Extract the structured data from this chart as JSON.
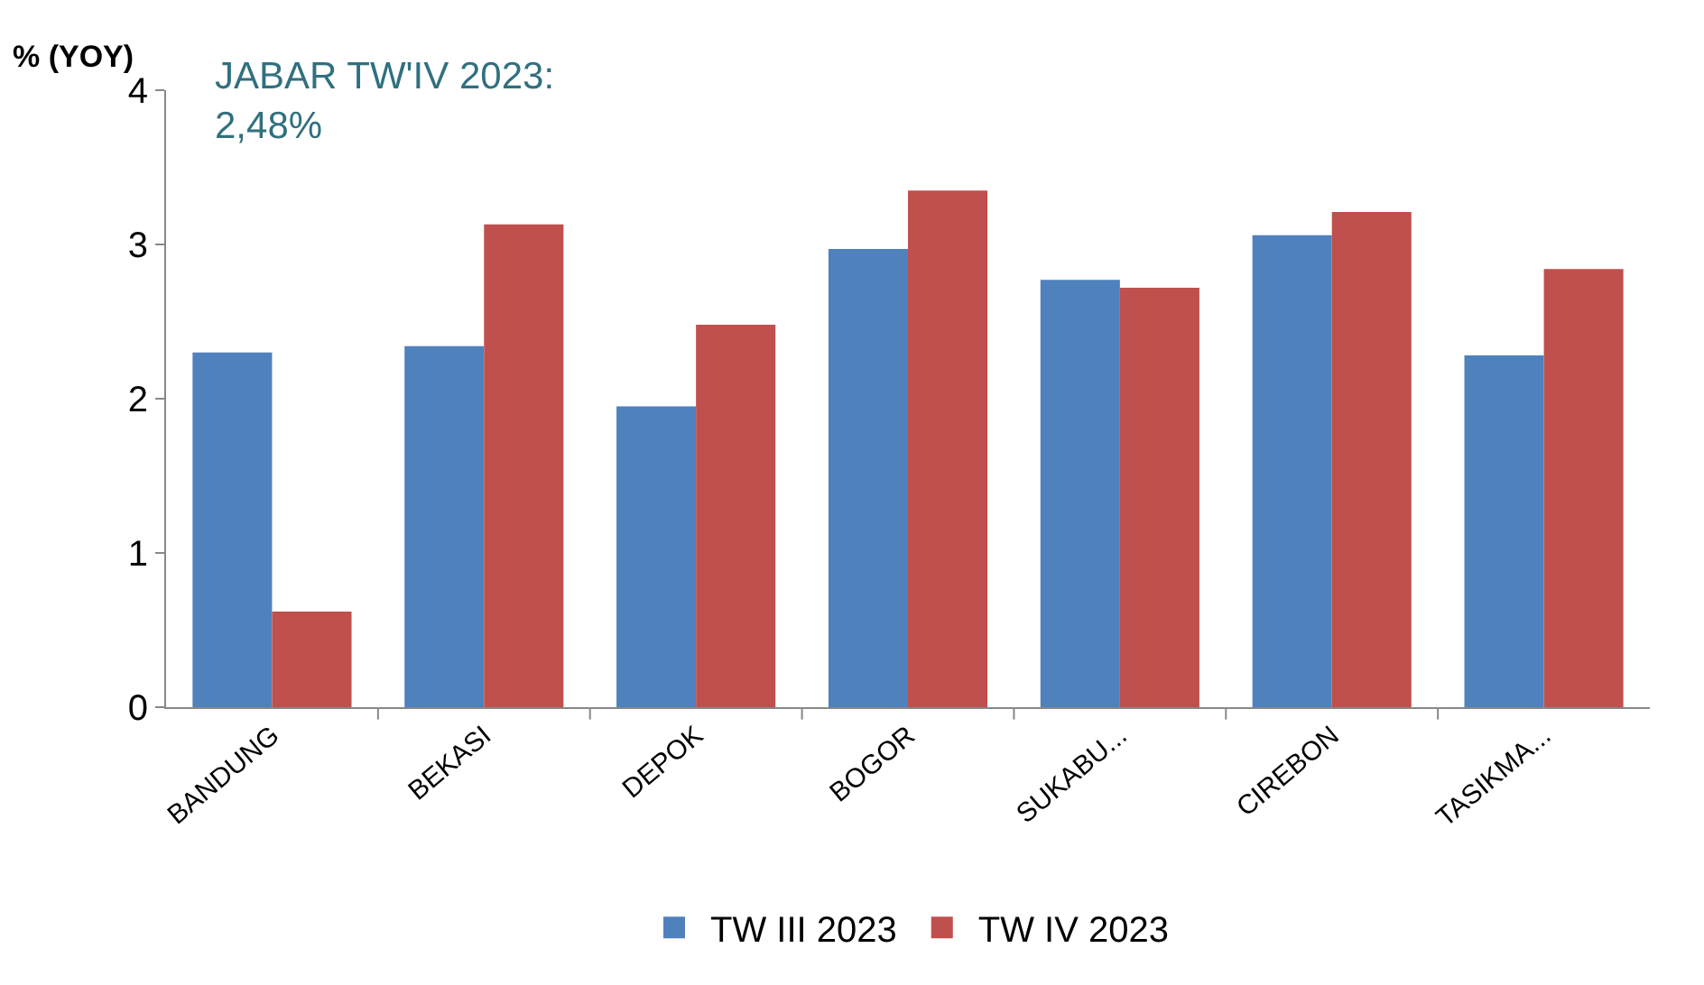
{
  "chart_data": {
    "type": "bar",
    "ylabel": "% (YOY)",
    "annotations": [
      "JABAR TW'IV 2023:\n2,48%"
    ],
    "categories": [
      "BANDUNG",
      "BEKASI",
      "DEPOK",
      "BOGOR",
      "SUKABU...",
      "CIREBON",
      "TASIKMA..."
    ],
    "series": [
      {
        "name": "TW III 2023",
        "color": "#4f81bd",
        "values": [
          2.3,
          2.34,
          1.95,
          2.97,
          2.77,
          3.06,
          2.28
        ]
      },
      {
        "name": "TW IV 2023",
        "color": "#c0504d",
        "values": [
          0.62,
          3.13,
          2.48,
          3.35,
          2.72,
          3.21,
          2.84
        ]
      }
    ],
    "ylim": [
      0,
      4
    ],
    "yticks": [
      0,
      1,
      2,
      3,
      4
    ],
    "grid": false,
    "legend": "bottom"
  }
}
